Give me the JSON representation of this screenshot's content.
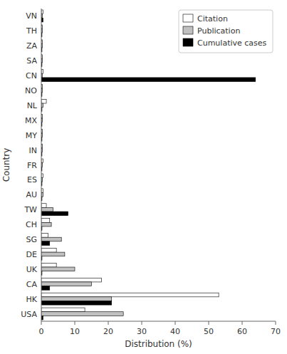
{
  "chart_data": {
    "type": "bar",
    "orientation": "horizontal",
    "categories": [
      "VN",
      "TH",
      "ZA",
      "SA",
      "CN",
      "NO",
      "NL",
      "MX",
      "MY",
      "IN",
      "FR",
      "ES",
      "AU",
      "TW",
      "CH",
      "SG",
      "DE",
      "UK",
      "CA",
      "HK",
      "USA"
    ],
    "series": [
      {
        "name": "Citation",
        "color": "#ffffff",
        "values": [
          0.5,
          0.3,
          0.3,
          0.3,
          0.5,
          0.3,
          1.5,
          0.3,
          0.3,
          0.3,
          0.5,
          0.5,
          0.5,
          1.5,
          2.5,
          2.0,
          4.5,
          4.5,
          18.0,
          53.0,
          13.0
        ]
      },
      {
        "name": "Publication",
        "color": "#c0c0c0",
        "values": [
          0.3,
          0.3,
          0.3,
          0.3,
          0.3,
          0.3,
          0.5,
          0.3,
          0.3,
          0.3,
          0.3,
          0.3,
          0.5,
          3.5,
          3.0,
          6.0,
          7.0,
          10.0,
          15.0,
          21.0,
          24.5
        ]
      },
      {
        "name": "Cumulative cases",
        "color": "#000000",
        "values": [
          0.5,
          0.2,
          0.2,
          0.2,
          64.0,
          0.2,
          0.2,
          0.2,
          0.2,
          0.2,
          0.2,
          0.2,
          0.2,
          8.0,
          0.2,
          2.5,
          0.2,
          0.2,
          2.5,
          21.0,
          0.5
        ]
      }
    ],
    "xlabel": "Distribution (%)",
    "ylabel": "Country",
    "xlim": [
      0,
      70
    ],
    "xticks": [
      0,
      10,
      20,
      30,
      40,
      50,
      60,
      70
    ],
    "legend": "upper right"
  }
}
